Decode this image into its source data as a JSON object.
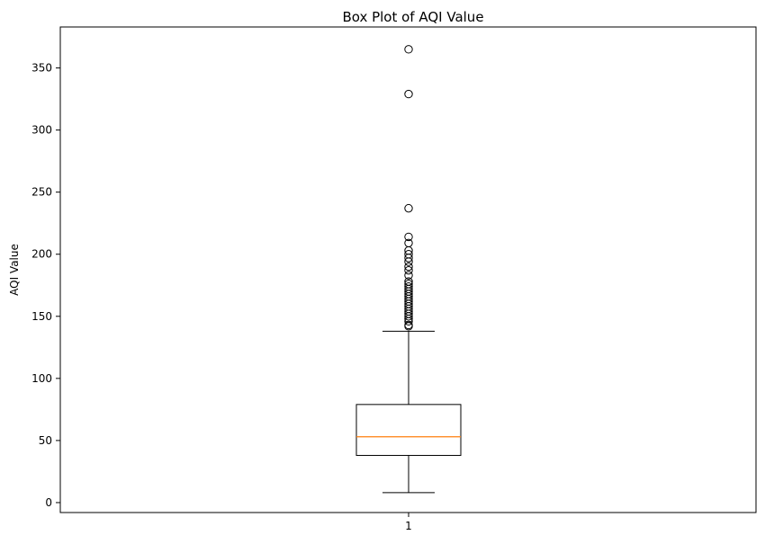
{
  "chart_data": {
    "type": "box",
    "title": "Box Plot of AQI Value",
    "xlabel": "",
    "ylabel": "AQI Value",
    "categories": [
      "1"
    ],
    "ylim": [
      -8,
      383
    ],
    "yticks": [
      0,
      50,
      100,
      150,
      200,
      250,
      300,
      350
    ],
    "box": {
      "min": 8,
      "q1": 38,
      "median": 53,
      "q3": 79,
      "max": 138
    },
    "outliers": [
      142,
      143,
      146,
      148,
      150,
      152,
      154,
      156,
      158,
      160,
      162,
      164,
      166,
      168,
      170,
      172,
      174,
      176,
      178,
      183,
      187,
      190,
      194,
      197,
      200,
      203,
      209,
      214,
      237,
      329,
      365
    ],
    "grid": false,
    "colors": {
      "box": "#000000",
      "median": "#ff7f0e",
      "outlier": "#000000"
    }
  }
}
